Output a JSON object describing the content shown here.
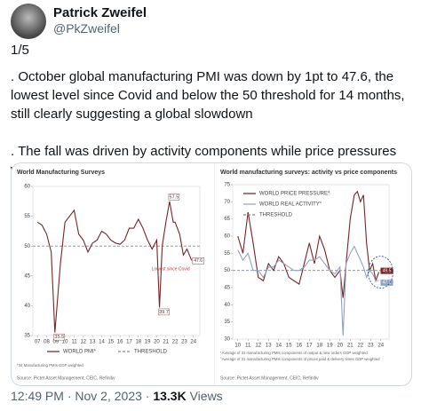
{
  "author": {
    "name": "Patrick Zweifel",
    "handle": "@PkZweifel"
  },
  "tweet": {
    "counter": "1/5",
    "paragraphs": [
      ". October global manufacturing PMI was down by 1pt to 47.6, the lowest level since Covid and below the 50 threshold for 14 months, still clearly suggesting a global slowdown",
      ". The fall was driven by activity components while price pressures were unchanged"
    ]
  },
  "chart_data": [
    {
      "type": "line",
      "title": "World Manufacturing Surveys",
      "x": [
        2007,
        2007.5,
        2008,
        2008.5,
        2008.9,
        2009.5,
        2010,
        2010.5,
        2011,
        2011.5,
        2012,
        2012.5,
        2013,
        2013.5,
        2014,
        2014.5,
        2015,
        2015.5,
        2016,
        2016.5,
        2017,
        2017.5,
        2018,
        2018.5,
        2019,
        2019.5,
        2020,
        2020.3,
        2020.6,
        2021,
        2021.4,
        2021.8,
        2022,
        2022.5,
        2022.9,
        2023.3,
        2023.8
      ],
      "series": [
        {
          "name": "WORLD PMI*",
          "color": "#7a2424",
          "values": [
            54,
            53.5,
            52,
            49,
            35.5,
            47,
            54,
            55,
            56,
            52,
            51,
            49,
            50.5,
            51,
            52.5,
            52,
            51,
            50.5,
            50.3,
            51,
            53,
            53,
            54.5,
            53,
            51,
            49.5,
            51,
            39.7,
            50,
            54,
            57.5,
            54,
            54,
            52,
            48.5,
            49.5,
            47.6
          ]
        }
      ],
      "reference_line": {
        "name": "THRESHOLD",
        "value": 50,
        "color": "#888888"
      },
      "annotations": [
        {
          "text": "57.5",
          "x": 2021.4,
          "y": 57.5
        },
        {
          "text": "35.5",
          "x": 2008.9,
          "y": 35.5
        },
        {
          "text": "39.7",
          "x": 2020.3,
          "y": 39.7
        },
        {
          "text": "47.6",
          "x": 2023.8,
          "y": 47.6
        },
        {
          "text": "Lowest since Covid",
          "x": 2023.8,
          "y": 47.6,
          "color": "#d03030"
        }
      ],
      "xlim": [
        2006.5,
        2024.7
      ],
      "xticks": [
        {
          "value": 2007,
          "label": "07"
        },
        {
          "value": 2008,
          "label": "08"
        },
        {
          "value": 2009,
          "label": "09"
        },
        {
          "value": 2010,
          "label": "10"
        },
        {
          "value": 2011,
          "label": "11"
        },
        {
          "value": 2012,
          "label": "12"
        },
        {
          "value": 2013,
          "label": "13"
        },
        {
          "value": 2014,
          "label": "14"
        },
        {
          "value": 2015,
          "label": "15"
        },
        {
          "value": 2016,
          "label": "16"
        },
        {
          "value": 2017,
          "label": "17"
        },
        {
          "value": 2018,
          "label": "18"
        },
        {
          "value": 2019,
          "label": "19"
        },
        {
          "value": 2020,
          "label": "20"
        },
        {
          "value": 2021,
          "label": "21"
        },
        {
          "value": 2022,
          "label": "22"
        },
        {
          "value": 2023,
          "label": "23"
        },
        {
          "value": 2024,
          "label": "24"
        }
      ],
      "ylim": [
        35,
        60
      ],
      "yticks": [
        35,
        40,
        45,
        50,
        55,
        60
      ],
      "legend": "bottom",
      "notes": [
        "*34 Manufacturing PMIs GDP weighted",
        "Source: Pictet Asset Management, CEIC, Refinitiv"
      ]
    },
    {
      "type": "line",
      "title": "World manufacturing surveys: activity vs price components",
      "x": [
        2010,
        2010.5,
        2011,
        2011.5,
        2012,
        2012.5,
        2013,
        2013.5,
        2014,
        2014.5,
        2015,
        2015.5,
        2016,
        2016.5,
        2017,
        2017.5,
        2018,
        2018.5,
        2019,
        2019.5,
        2020,
        2020.3,
        2020.6,
        2021,
        2021.4,
        2021.7,
        2022,
        2022.3,
        2022.6,
        2022.9,
        2023.2,
        2023.5,
        2023.8
      ],
      "series": [
        {
          "name": "WORLD PRICE PRESSURE*",
          "color": "#7a2424",
          "values": [
            60,
            55,
            67,
            58,
            48,
            47,
            52,
            50,
            54,
            52,
            48,
            47,
            46,
            52,
            58,
            52,
            60,
            56,
            50,
            48,
            50,
            42,
            52,
            65,
            72,
            73,
            70,
            72,
            58,
            50,
            52,
            47,
            49.5
          ]
        },
        {
          "name": "WORLD REAL ACTIVITY°",
          "color": "#8ea2c8",
          "values": [
            56,
            53,
            55,
            50,
            50,
            48,
            51,
            51,
            53,
            52,
            51,
            50,
            50,
            51,
            53,
            53,
            54,
            52,
            50,
            49,
            51,
            31,
            52,
            55,
            57,
            55,
            53,
            51,
            48,
            50,
            49,
            47,
            47.1
          ]
        }
      ],
      "reference_line": {
        "name": "THRESHOLD",
        "value": 50,
        "color": "#888888"
      },
      "annotations": [
        {
          "text": "49.5",
          "x": 2023.8,
          "y": 49.5,
          "color": "#7a2424"
        },
        {
          "text": "47.1",
          "x": 2023.8,
          "y": 47.1,
          "color": "#8ea2c8"
        }
      ],
      "xlim": [
        2009.5,
        2024.8
      ],
      "xticks": [
        {
          "value": 2010,
          "label": "10"
        },
        {
          "value": 2011,
          "label": "11"
        },
        {
          "value": 2012,
          "label": "12"
        },
        {
          "value": 2013,
          "label": "13"
        },
        {
          "value": 2014,
          "label": "14"
        },
        {
          "value": 2015,
          "label": "15"
        },
        {
          "value": 2016,
          "label": "16"
        },
        {
          "value": 2017,
          "label": "17"
        },
        {
          "value": 2018,
          "label": "18"
        },
        {
          "value": 2019,
          "label": "19"
        },
        {
          "value": 2020,
          "label": "20"
        },
        {
          "value": 2021,
          "label": "21"
        },
        {
          "value": 2022,
          "label": "22"
        },
        {
          "value": 2023,
          "label": "23"
        },
        {
          "value": 2024,
          "label": "24"
        }
      ],
      "ylim": [
        30,
        75
      ],
      "yticks": [
        30,
        35,
        40,
        45,
        50,
        55,
        60,
        65,
        70,
        75
      ],
      "legend": "top-left",
      "notes": [
        "*Average of 31 manufacturing PMIs components of output & new orders GDP weighted",
        "°Average of 31 manufacturing PMIs components of prices paid & delivery times GDP weighted",
        "Source: Pictet Asset Management, CEIC, Refinitiv"
      ]
    }
  ],
  "footer": {
    "time": "12:49 PM",
    "separator": "·",
    "date": "Nov 2, 2023",
    "views": "13.3K",
    "views_label": "Views"
  }
}
